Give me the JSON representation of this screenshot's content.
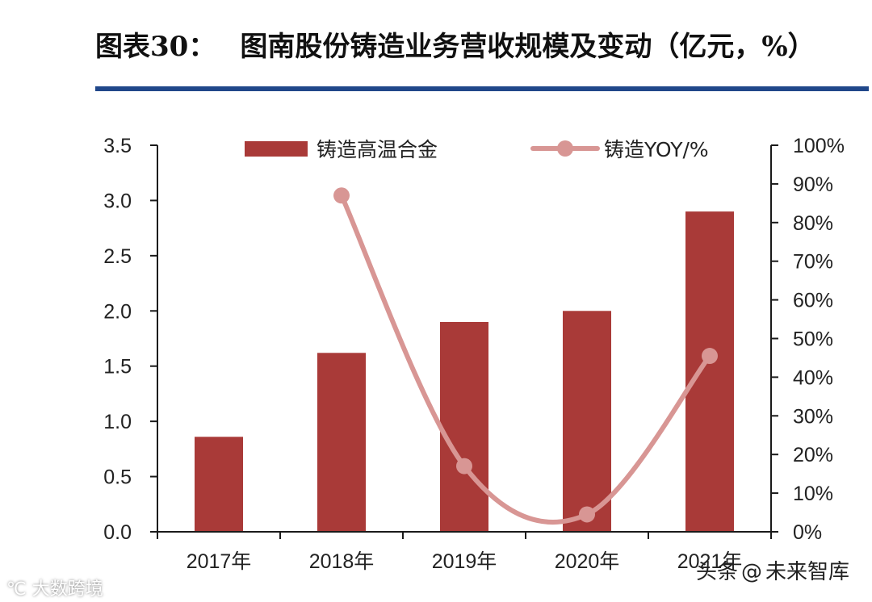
{
  "title": {
    "label": "图表30：",
    "text": "图南股份铸造业务营收规模及变动（亿元，%）"
  },
  "colors": {
    "bar": "#a93a38",
    "line": "#d89694",
    "rule": "#20478a",
    "axis": "#1a1a1a"
  },
  "watermark": {
    "left": "大数跨境",
    "right_source": "头条",
    "right_at": "@",
    "right_name": "未来智库"
  },
  "chart_data": {
    "type": "bar",
    "categories": [
      "2017年",
      "2018年",
      "2019年",
      "2020年",
      "2021年"
    ],
    "series": [
      {
        "name": "铸造高温合金",
        "type": "bar",
        "axis": "left",
        "values": [
          0.86,
          1.62,
          1.9,
          2.0,
          2.9
        ]
      },
      {
        "name": "铸造YOY/%",
        "type": "line",
        "axis": "right",
        "values": [
          null,
          87,
          17,
          4.5,
          45.5
        ]
      }
    ],
    "ylim": [
      0,
      3.5
    ],
    "yticks": [
      "0.0",
      "0.5",
      "1.0",
      "1.5",
      "2.0",
      "2.5",
      "3.0",
      "3.5"
    ],
    "y2lim": [
      0,
      100
    ],
    "y2ticks": [
      "0%",
      "10%",
      "20%",
      "30%",
      "40%",
      "50%",
      "60%",
      "70%",
      "80%",
      "90%",
      "100%"
    ],
    "legend_position": "top",
    "grid": false
  }
}
